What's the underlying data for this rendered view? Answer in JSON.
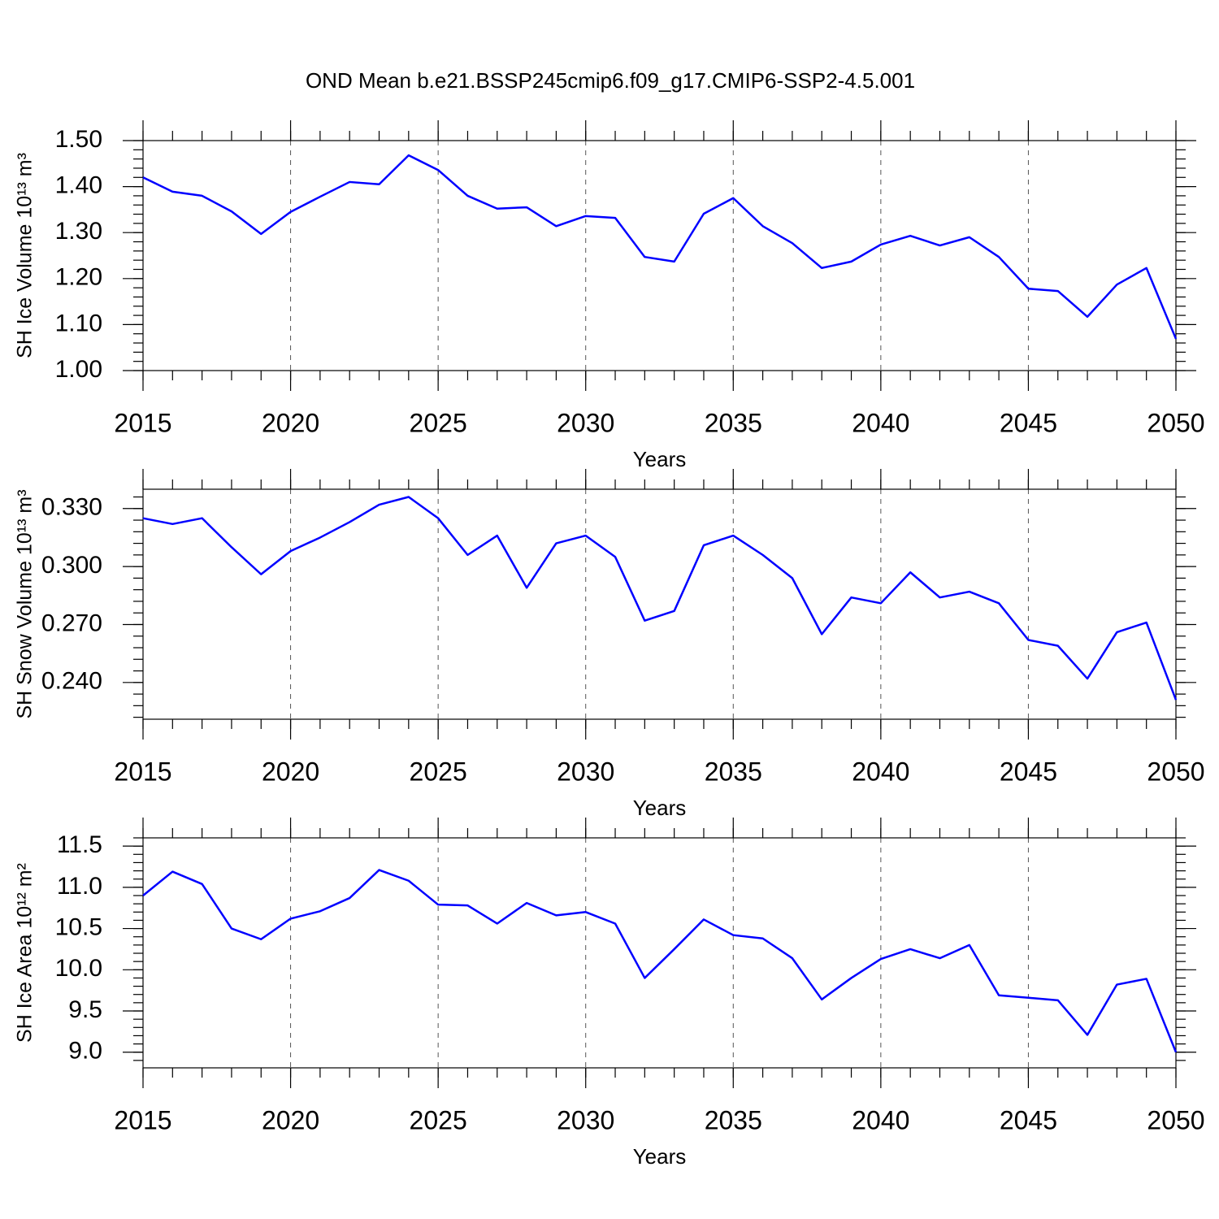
{
  "title": "OND Mean b.e21.BSSP245cmip6.f09_g17.CMIP6-SSP2-4.5.001",
  "chart_data": [
    {
      "type": "line",
      "y_label": "SH Ice Volume 10¹³ m³",
      "x_label": "Years",
      "color": "#0000ff",
      "x_grid": true,
      "x": [
        2015,
        2016,
        2017,
        2018,
        2019,
        2020,
        2021,
        2022,
        2023,
        2024,
        2025,
        2026,
        2027,
        2028,
        2029,
        2030,
        2031,
        2032,
        2033,
        2034,
        2035,
        2036,
        2037,
        2038,
        2039,
        2040,
        2041,
        2042,
        2043,
        2044,
        2045,
        2046,
        2047,
        2048,
        2049,
        2050
      ],
      "values": [
        1.42,
        1.389,
        1.38,
        1.346,
        1.297,
        1.345,
        1.378,
        1.41,
        1.405,
        1.468,
        1.436,
        1.38,
        1.352,
        1.355,
        1.314,
        1.336,
        1.332,
        1.247,
        1.237,
        1.341,
        1.375,
        1.314,
        1.277,
        1.223,
        1.237,
        1.274,
        1.293,
        1.272,
        1.29,
        1.247,
        1.178,
        1.173,
        1.117,
        1.187,
        1.223,
        1.069
      ],
      "xlim": [
        2015,
        2050
      ],
      "xticks": [
        2015,
        2020,
        2025,
        2030,
        2035,
        2040,
        2045,
        2050
      ],
      "ylim": [
        1.0,
        1.5
      ],
      "yticks": [
        {
          "value": 1.0,
          "label": "1.00"
        },
        {
          "value": 1.1,
          "label": "1.10"
        },
        {
          "value": 1.2,
          "label": "1.20"
        },
        {
          "value": 1.3,
          "label": "1.30"
        },
        {
          "value": 1.4,
          "label": "1.40"
        },
        {
          "value": 1.5,
          "label": "1.50"
        }
      ]
    },
    {
      "type": "line",
      "y_label": "SH Snow Volume 10¹³ m³",
      "x_label": "Years",
      "color": "#0000ff",
      "x_grid": true,
      "x": [
        2015,
        2016,
        2017,
        2018,
        2019,
        2020,
        2021,
        2022,
        2023,
        2024,
        2025,
        2026,
        2027,
        2028,
        2029,
        2030,
        2031,
        2032,
        2033,
        2034,
        2035,
        2036,
        2037,
        2038,
        2039,
        2040,
        2041,
        2042,
        2043,
        2044,
        2045,
        2046,
        2047,
        2048,
        2049,
        2050
      ],
      "values": [
        0.325,
        0.322,
        0.325,
        0.31,
        0.296,
        0.308,
        0.315,
        0.323,
        0.332,
        0.336,
        0.325,
        0.306,
        0.316,
        0.289,
        0.312,
        0.316,
        0.305,
        0.272,
        0.277,
        0.311,
        0.316,
        0.306,
        0.294,
        0.265,
        0.284,
        0.281,
        0.297,
        0.284,
        0.287,
        0.281,
        0.262,
        0.259,
        0.242,
        0.266,
        0.271,
        0.231
      ],
      "xlim": [
        2015,
        2050
      ],
      "xticks": [
        2015,
        2020,
        2025,
        2030,
        2035,
        2040,
        2045,
        2050
      ],
      "ylim": [
        0.221,
        0.34
      ],
      "yticks": [
        {
          "value": 0.24,
          "label": "0.240"
        },
        {
          "value": 0.27,
          "label": "0.270"
        },
        {
          "value": 0.3,
          "label": "0.300"
        },
        {
          "value": 0.33,
          "label": "0.330"
        }
      ]
    },
    {
      "type": "line",
      "y_label": "SH Ice Area 10¹² m²",
      "x_label": "Years",
      "color": "#0000ff",
      "x_grid": true,
      "x": [
        2015,
        2016,
        2017,
        2018,
        2019,
        2020,
        2021,
        2022,
        2023,
        2024,
        2025,
        2026,
        2027,
        2028,
        2029,
        2030,
        2031,
        2032,
        2033,
        2034,
        2035,
        2036,
        2037,
        2038,
        2039,
        2040,
        2041,
        2042,
        2043,
        2044,
        2045,
        2046,
        2047,
        2048,
        2049,
        2050
      ],
      "values": [
        10.9,
        11.19,
        11.04,
        10.5,
        10.37,
        10.62,
        10.71,
        10.87,
        11.21,
        11.08,
        10.79,
        10.78,
        10.56,
        10.81,
        10.66,
        10.7,
        10.56,
        9.9,
        10.25,
        10.61,
        10.42,
        10.38,
        10.14,
        9.64,
        9.9,
        10.13,
        10.25,
        10.14,
        10.3,
        9.69,
        9.66,
        9.63,
        9.21,
        9.82,
        9.89,
        9.0
      ],
      "xlim": [
        2015,
        2050
      ],
      "xticks": [
        2015,
        2020,
        2025,
        2030,
        2035,
        2040,
        2045,
        2050
      ],
      "ylim": [
        8.81,
        11.6
      ],
      "yticks": [
        {
          "value": 9,
          "label": "9.0"
        },
        9.5,
        {
          "value": 10,
          "label": "10.0"
        },
        10.5,
        {
          "value": 11,
          "label": "11.0"
        },
        11.5
      ]
    }
  ]
}
